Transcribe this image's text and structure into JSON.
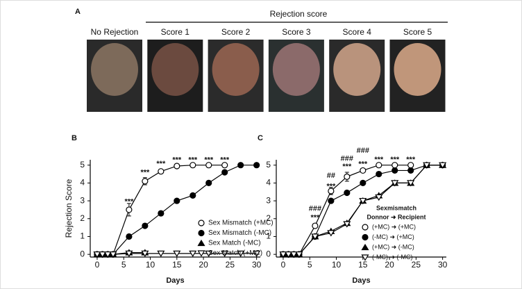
{
  "panel_a": {
    "label": "A",
    "header": "Rejection score",
    "photos": [
      "No Rejection",
      "Score 1",
      "Score 2",
      "Score 3",
      "Score 4",
      "Score 5"
    ]
  },
  "chart_data": [
    {
      "type": "line",
      "label": "B",
      "ylabel": "Rejection Score",
      "xlabel": "Days",
      "xlim": [
        -1.3,
        30.7
      ],
      "ylim": [
        -0.15,
        5.3
      ],
      "xticks": [
        0,
        5,
        10,
        15,
        20,
        25,
        30
      ],
      "yticks": [
        0,
        1,
        2,
        3,
        4,
        5
      ],
      "legend": "lower right",
      "series": [
        {
          "name": "Sex Mismatch (+MC)",
          "color": "#000000",
          "marker": "circle-open",
          "x": [
            0,
            1,
            2,
            3,
            6,
            9,
            12,
            15,
            18,
            21,
            24
          ],
          "values": [
            0,
            0,
            0,
            0,
            2.5,
            4.1,
            4.65,
            4.95,
            5,
            5,
            5
          ],
          "errors": [
            null,
            null,
            null,
            null,
            0.35,
            0.2,
            0.1,
            null,
            null,
            null,
            null
          ]
        },
        {
          "name": "Sex Mismatch (-MC)",
          "color": "#000000",
          "marker": "circle",
          "x": [
            0,
            1,
            2,
            3,
            6,
            9,
            12,
            15,
            18,
            21,
            24,
            27,
            30
          ],
          "values": [
            0,
            0,
            0,
            0,
            1,
            1.6,
            2.3,
            3,
            3.3,
            4,
            4.6,
            5,
            5
          ]
        },
        {
          "name": "Sex Match (-MC)",
          "color": "#000000",
          "marker": "triangle",
          "x": [
            0,
            1,
            2,
            3,
            6,
            9
          ],
          "values": [
            0,
            0,
            0,
            0,
            0.1,
            0.1
          ]
        },
        {
          "name": "Sex Match (+MC)",
          "color": "#000000",
          "marker": "triangle-down-open",
          "x": [
            0,
            1,
            2,
            3,
            6,
            9,
            12,
            15,
            18,
            21,
            24,
            27,
            30
          ],
          "values": [
            0,
            0,
            0,
            0,
            0.05,
            0.05,
            0.05,
            0.05,
            0.05,
            0.05,
            0.05,
            0.05,
            0.05
          ]
        }
      ],
      "annotations": [
        {
          "text": "***",
          "x": 6,
          "y": 2.95
        },
        {
          "text": "***",
          "x": 9,
          "y": 4.57
        },
        {
          "text": "***",
          "x": 12,
          "y": 5.07
        },
        {
          "text": "***",
          "x": 15,
          "y": 5.27
        },
        {
          "text": "***",
          "x": 18,
          "y": 5.27
        },
        {
          "text": "***",
          "x": 21,
          "y": 5.27
        },
        {
          "text": "***",
          "x": 24,
          "y": 5.27
        }
      ]
    },
    {
      "type": "line",
      "label": "C",
      "xlabel": "Days",
      "xlim": [
        -1.3,
        30.7
      ],
      "ylim": [
        -0.15,
        5.3
      ],
      "xticks": [
        0,
        5,
        10,
        15,
        20,
        25,
        30
      ],
      "yticks": [
        0,
        1,
        2,
        3,
        4,
        5
      ],
      "legend": "lower right",
      "legend_title": "Sexmismatch",
      "legend_header": "Donnor ➜ Recipient",
      "series": [
        {
          "name": "(+MC) ➜ (+MC)",
          "color": "#000000",
          "marker": "circle-open",
          "x": [
            0,
            1,
            2,
            3,
            6,
            9,
            12,
            15,
            18,
            21,
            24
          ],
          "values": [
            0,
            0,
            0,
            0,
            1.6,
            3.55,
            4.35,
            4.7,
            5,
            5,
            5
          ],
          "errors": [
            null,
            null,
            null,
            null,
            null,
            0.2,
            0.25,
            null,
            null,
            null,
            null
          ]
        },
        {
          "name": "(-MC) ➜ (+MC)",
          "color": "#000000",
          "marker": "circle",
          "x": [
            0,
            1,
            2,
            3,
            6,
            9,
            12,
            15,
            18,
            21,
            24,
            27,
            30
          ],
          "values": [
            0,
            0,
            0,
            0,
            1,
            3,
            3.45,
            4,
            4.5,
            4.7,
            4.7,
            5,
            5
          ],
          "errors": [
            null,
            null,
            null,
            null,
            null,
            null,
            0.1,
            null,
            null,
            null,
            null,
            null,
            null
          ]
        },
        {
          "name": "(+MC) ➜ (-MC)",
          "color": "#000000",
          "marker": "triangle",
          "x": [
            0,
            1,
            2,
            3,
            6,
            9,
            12,
            15,
            18,
            21,
            24,
            27,
            30
          ],
          "values": [
            0,
            0,
            0,
            0,
            1,
            1.3,
            1.75,
            3,
            3.3,
            4,
            4,
            5,
            5
          ]
        },
        {
          "name": "(-MC) ➜ (-MC)",
          "color": "#000000",
          "marker": "triangle-down-open",
          "x": [
            0,
            1,
            2,
            3,
            6,
            9,
            12,
            15,
            18,
            21,
            24,
            27,
            30
          ],
          "values": [
            0,
            0,
            0,
            0,
            1,
            1.2,
            1.7,
            3,
            3.2,
            4,
            4,
            5,
            5
          ]
        }
      ],
      "annotations": [
        {
          "text": "###",
          "x": 6,
          "y": 2.55
        },
        {
          "text": "***",
          "x": 6,
          "y": 2.05
        },
        {
          "text": "##",
          "x": 9,
          "y": 4.4
        },
        {
          "text": "***",
          "x": 9,
          "y": 3.8
        },
        {
          "text": "###",
          "x": 12,
          "y": 5.35
        },
        {
          "text": "***",
          "x": 12,
          "y": 4.9
        },
        {
          "text": "###",
          "x": 15,
          "y": 5.8
        },
        {
          "text": "***",
          "x": 15,
          "y": 5.05
        },
        {
          "text": "***",
          "x": 18,
          "y": 5.3
        },
        {
          "text": "***",
          "x": 21,
          "y": 5.3
        },
        {
          "text": "***",
          "x": 24,
          "y": 5.3
        }
      ]
    }
  ]
}
